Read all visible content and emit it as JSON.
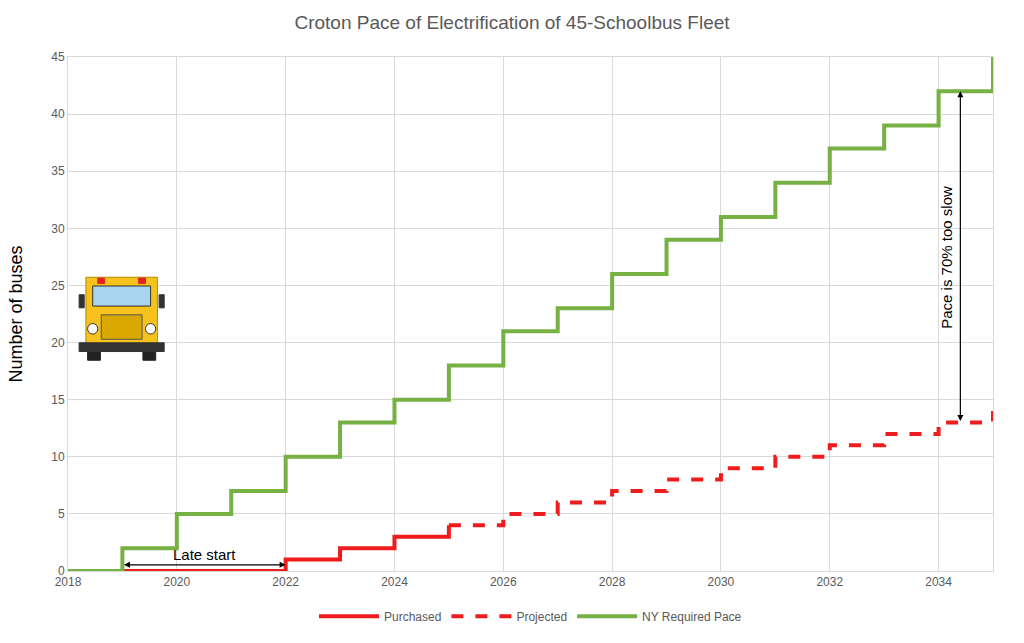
{
  "chart_data": {
    "type": "step",
    "title": "Croton Pace of Electrification of 45-Schoolbus Fleet",
    "y_label": "Number of buses",
    "xlim": [
      2018,
      2035
    ],
    "xticks": [
      2018,
      2020,
      2022,
      2024,
      2026,
      2028,
      2030,
      2032,
      2034
    ],
    "ylim": [
      0,
      45
    ],
    "yticks": [
      0,
      5,
      10,
      15,
      20,
      25,
      30,
      35,
      40,
      45
    ],
    "grid": true,
    "legend": "bottom",
    "series": [
      {
        "name": "Purchased",
        "color": "#ee1c1c",
        "line_style": "solid",
        "x": [
          2019,
          2020,
          2021,
          2022,
          2023,
          2024,
          2025
        ],
        "values": [
          0,
          0,
          0,
          1,
          2,
          3,
          4
        ]
      },
      {
        "name": "Projected",
        "color": "#ee1c1c",
        "line_style": "dash",
        "x": [
          2025,
          2026,
          2027,
          2028,
          2029,
          2030,
          2031,
          2032,
          2033,
          2034,
          2035
        ],
        "values": [
          4,
          5,
          6,
          7,
          8,
          9,
          10,
          11,
          12,
          13,
          14
        ]
      },
      {
        "name": "NY Required Pace",
        "color": "#77b043",
        "line_style": "solid",
        "x": [
          2018,
          2019,
          2020,
          2021,
          2022,
          2023,
          2024,
          2025,
          2026,
          2027,
          2028,
          2029,
          2030,
          2031,
          2032,
          2033,
          2034,
          2035
        ],
        "values": [
          0,
          2,
          5,
          7,
          10,
          13,
          15,
          18,
          21,
          23,
          26,
          29,
          31,
          34,
          37,
          39,
          42,
          45
        ]
      }
    ],
    "annotations": [
      {
        "text": "Late start",
        "x": [
          2019,
          2022
        ]
      },
      {
        "text": "Pace is 70% too slow",
        "x": 2034.4,
        "y": [
          13,
          42
        ]
      }
    ]
  }
}
